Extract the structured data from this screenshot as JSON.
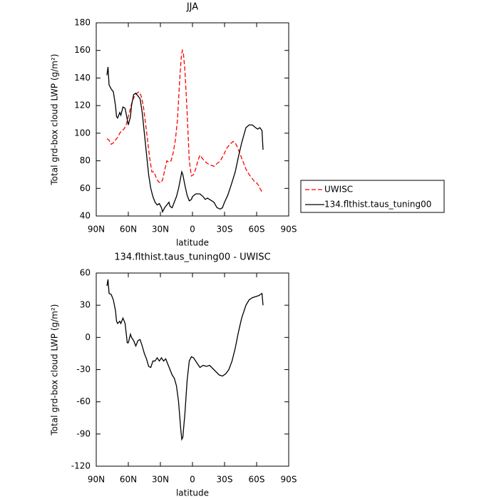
{
  "chart_data": [
    {
      "type": "line",
      "title": "JJA",
      "xlabel": "latitude",
      "ylabel": "Total grd-box cloud LWP (g/m²)",
      "xlim": [
        90,
        -90
      ],
      "ylim": [
        40,
        180
      ],
      "xticks": [
        {
          "value": 90,
          "label": "90N"
        },
        {
          "value": 60,
          "label": "60N"
        },
        {
          "value": 30,
          "label": "30N"
        },
        0,
        {
          "value": -30,
          "label": "30S"
        },
        {
          "value": -60,
          "label": "60S"
        },
        {
          "value": -90,
          "label": "90S"
        }
      ],
      "yticks": [
        40,
        60,
        80,
        100,
        120,
        140,
        160,
        180
      ],
      "legend": "outside-right",
      "series": [
        {
          "name": "UWISC",
          "color": "#ff0000",
          "dash": true,
          "x": [
            80,
            78,
            77,
            76,
            74,
            72,
            70,
            68,
            66,
            64,
            62,
            60,
            58,
            56,
            54,
            52,
            50,
            48,
            46,
            44,
            42,
            40,
            38,
            36,
            34,
            32,
            30,
            28,
            26,
            24,
            22,
            20,
            18,
            16,
            14,
            12,
            10.5,
            9.5,
            8.5,
            7,
            5,
            3,
            1,
            -1,
            -3,
            -5,
            -7,
            -9,
            -11,
            -14,
            -17,
            -20,
            -23,
            -26,
            -29,
            -32,
            -35,
            -38,
            -40,
            -42,
            -44,
            -47,
            -50,
            -53,
            -56,
            -58,
            -60,
            -62,
            -63,
            -64,
            -65
          ],
          "values": [
            96,
            95,
            93,
            92,
            93,
            95,
            97,
            100,
            102,
            103,
            106,
            112,
            118,
            124,
            127,
            129,
            130,
            127,
            120,
            108,
            95,
            82,
            72,
            72,
            68,
            65,
            64,
            66,
            73,
            80,
            79,
            80,
            86,
            95,
            110,
            138,
            155,
            160,
            158,
            145,
            115,
            80,
            69,
            70,
            74,
            80,
            84,
            82,
            80,
            78,
            77,
            76,
            78,
            80,
            84,
            89,
            92,
            94,
            93,
            90,
            86,
            80,
            74,
            70,
            67,
            65,
            64,
            62,
            60,
            59,
            57
          ]
        },
        {
          "name": "134.flthist.taus_tuning00",
          "color": "#000000",
          "dash": false,
          "x": [
            80,
            79,
            78,
            76,
            74,
            72,
            71,
            70,
            68,
            67,
            65,
            63,
            61,
            60,
            58,
            57,
            55,
            53,
            51,
            49,
            47,
            45,
            43,
            41,
            39,
            37,
            35,
            33,
            31,
            29,
            28,
            26,
            24,
            22,
            21,
            19,
            17,
            15,
            13,
            11,
            10,
            9,
            7,
            5,
            3,
            1,
            0,
            -3,
            -7,
            -10,
            -12,
            -14,
            -16,
            -18,
            -20,
            -23,
            -26,
            -28,
            -30,
            -33,
            -36,
            -40,
            -43,
            -46,
            -50,
            -53,
            -56,
            -59,
            -61,
            -63,
            -65,
            -66
          ],
          "values": [
            142,
            148,
            135,
            132,
            130,
            120,
            112,
            111,
            115,
            113,
            119,
            118,
            110,
            106,
            112,
            120,
            128,
            129,
            127,
            125,
            115,
            100,
            85,
            70,
            60,
            54,
            50,
            48,
            49,
            46,
            43,
            46,
            48,
            50,
            47,
            46,
            50,
            54,
            60,
            68,
            72,
            70,
            62,
            55,
            51,
            52,
            54,
            56,
            56,
            54,
            52,
            53,
            52,
            51,
            50,
            46,
            45,
            46,
            50,
            55,
            62,
            72,
            83,
            93,
            104,
            106,
            106,
            104,
            103,
            104,
            102,
            88
          ]
        }
      ]
    },
    {
      "type": "line",
      "title": "134.flthist.taus_tuning00 - UWISC",
      "xlabel": "latitude",
      "ylabel": "Total grd-box cloud LWP (g/m²)",
      "xlim": [
        90,
        -90
      ],
      "ylim": [
        -120,
        60
      ],
      "xticks": [
        {
          "value": 90,
          "label": "90N"
        },
        {
          "value": 60,
          "label": "60N"
        },
        {
          "value": 30,
          "label": "30N"
        },
        0,
        {
          "value": -30,
          "label": "30S"
        },
        {
          "value": -60,
          "label": "60S"
        },
        {
          "value": -90,
          "label": "90S"
        }
      ],
      "yticks": [
        -120,
        -90,
        -60,
        -30,
        0,
        30,
        60
      ],
      "series": [
        {
          "color": "#000000",
          "dash": false,
          "x": [
            80,
            79,
            78,
            76,
            74,
            72,
            71,
            70,
            68,
            67,
            65,
            63,
            61,
            60,
            58,
            57,
            55,
            53,
            51,
            49,
            47,
            45,
            43,
            41,
            39,
            37,
            35,
            33,
            31,
            29,
            27,
            25,
            23,
            21,
            19,
            17,
            15,
            13,
            11,
            10,
            9,
            7,
            5,
            3,
            1,
            -1,
            -3,
            -5,
            -7,
            -10,
            -13,
            -16,
            -19,
            -22,
            -25,
            -28,
            -31,
            -34,
            -37,
            -40,
            -43,
            -46,
            -50,
            -53,
            -56,
            -59,
            -62,
            -65,
            -66
          ],
          "values": [
            48,
            54,
            41,
            40,
            35,
            25,
            15,
            13,
            15,
            13,
            18,
            13,
            -5,
            -5,
            3,
            0,
            -3,
            -8,
            -3,
            -2,
            -8,
            -15,
            -20,
            -27,
            -28,
            -22,
            -22,
            -19,
            -22,
            -19,
            -22,
            -20,
            -25,
            -30,
            -35,
            -38,
            -45,
            -60,
            -85,
            -95,
            -93,
            -70,
            -40,
            -22,
            -18,
            -19,
            -22,
            -25,
            -28,
            -26,
            -27,
            -26,
            -29,
            -32,
            -35,
            -36,
            -34,
            -30,
            -22,
            -10,
            5,
            18,
            30,
            35,
            37,
            38,
            39,
            41,
            30
          ]
        }
      ]
    }
  ]
}
